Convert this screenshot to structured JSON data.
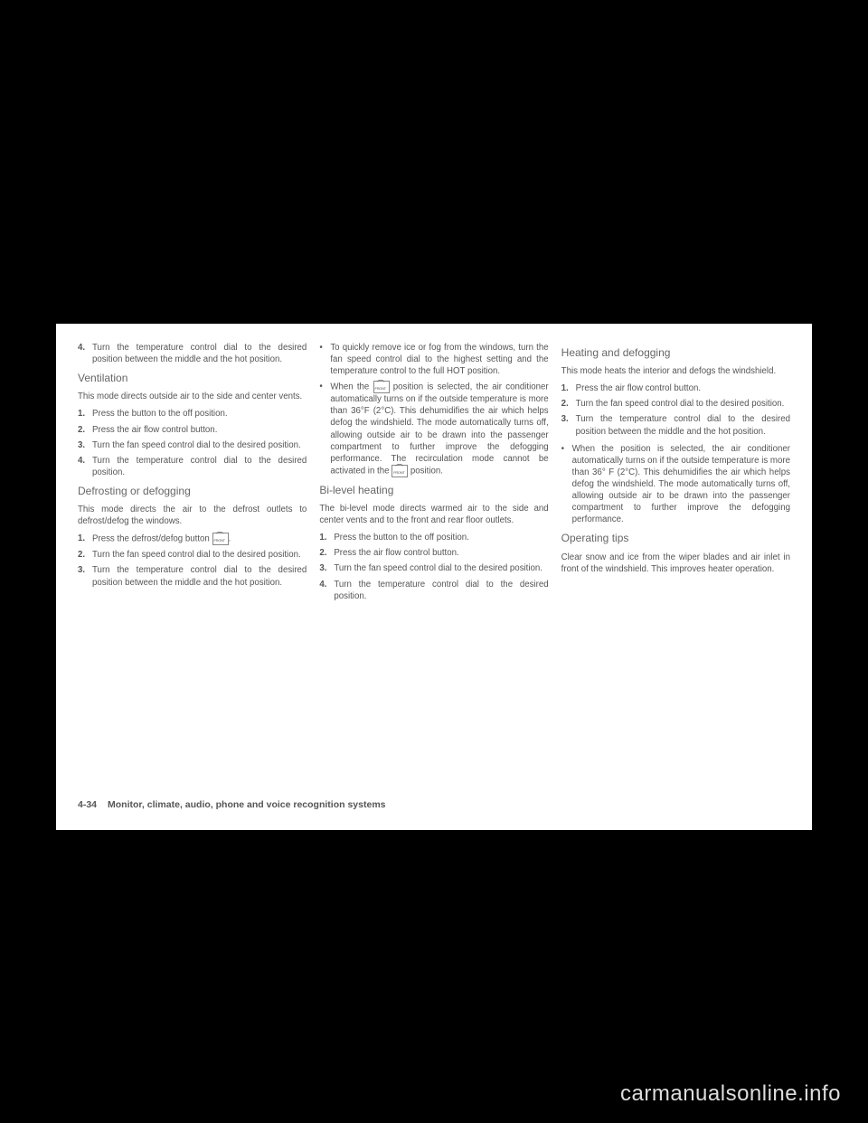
{
  "col1": {
    "item4": "Turn the temperature control dial to the desired position between the middle and the hot position.",
    "ventilation": {
      "heading": "Ventilation",
      "intro": "This mode directs outside air to the side and center vents.",
      "step1": "Press the        button to the off position.",
      "step2": "Press the           air flow control button.",
      "step3": "Turn the         fan speed control dial to the desired position.",
      "step4": "Turn the temperature control dial to the desired position."
    },
    "defrost": {
      "heading": "Defrosting or defogging",
      "intro": "This mode directs the air to the defrost outlets to defrost/defog the windows.",
      "step1": "Press the defrost/defog button",
      "step2": "Turn the        fan speed control dial to the desired position.",
      "step3": "Turn the temperature control dial to the desired position between the middle and the hot position."
    }
  },
  "col2": {
    "bullet1": "To quickly remove ice or fog from the windows, turn the        fan speed control dial to the highest setting and the temperature control to the full HOT position.",
    "bullet2a": "When the ",
    "bullet2b": " position is selected, the air conditioner automatically turns on if the outside temperature is more than 36°F (2°C). This dehumidifies the air which helps defog the windshield. The        mode automatically turns off, allowing outside air to be drawn into the passenger compartment to further improve the defogging performance. The recirculation        mode cannot be activated in the",
    "bullet2c": " position.",
    "bilevel": {
      "heading": "Bi-level heating",
      "intro": "The bi-level mode directs warmed air to the side and center vents and to the front and rear floor outlets.",
      "step1": "Press the        button to the off position.",
      "step2": "Press the           air flow control button.",
      "step3": "Turn the         fan speed control dial to the desired position.",
      "step4": "Turn the temperature control dial to the desired position."
    }
  },
  "col3": {
    "heatdefog": {
      "heading": "Heating and defogging",
      "intro": "This mode heats the interior and defogs the windshield.",
      "step1": "Press the            air flow control button.",
      "step2": "Turn the         fan speed control dial to the desired position.",
      "step3": "Turn the temperature control dial to the desired position between the middle and the hot position.",
      "bullet": "When the           position is selected, the air conditioner automatically turns on if the outside temperature is more than 36° F (2°C). This dehumidifies the air which helps defog the windshield. The         mode automatically turns off, allowing outside air to be drawn into the passenger compartment to further improve the defogging performance."
    },
    "tips": {
      "heading": "Operating tips",
      "text": "Clear snow and ice from the wiper blades and air inlet in front of the windshield. This improves heater operation."
    }
  },
  "footer": {
    "page": "4-34",
    "section": "Monitor, climate, audio, phone and voice recognition systems"
  },
  "watermark": "carmanualsonline.info"
}
